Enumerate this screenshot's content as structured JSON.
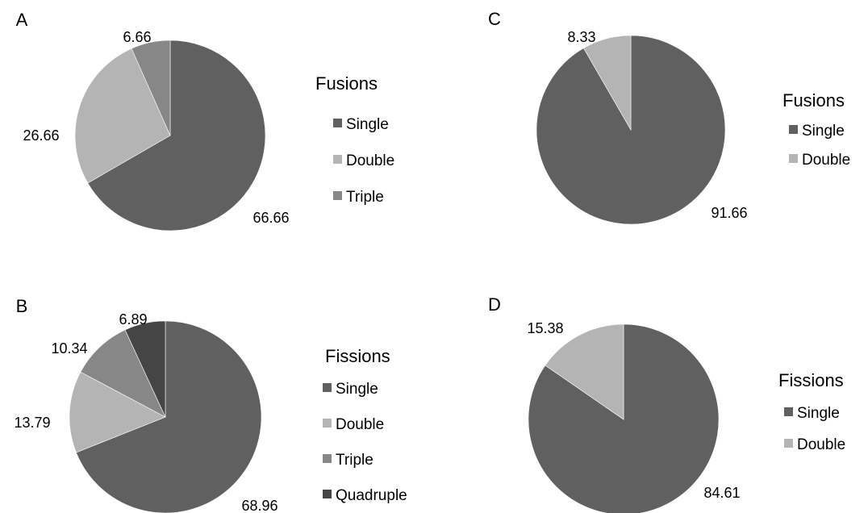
{
  "chart_data": [
    {
      "type": "pie",
      "panel": "A",
      "legend_title": "Fusions",
      "legend": [
        "Single",
        "Double",
        "Triple"
      ],
      "slices": [
        {
          "name": "Single",
          "value": 66.66,
          "label": "66.66",
          "color": "#606060"
        },
        {
          "name": "Double",
          "value": 26.66,
          "label": "26.66",
          "color": "#b4b4b4"
        },
        {
          "name": "Triple",
          "value": 6.66,
          "label": "6.66",
          "color": "#878787"
        }
      ],
      "legend_placement": "right"
    },
    {
      "type": "pie",
      "panel": "B",
      "legend_title": "Fissions",
      "legend": [
        "Single",
        "Double",
        "Triple",
        "Quadruple"
      ],
      "slices": [
        {
          "name": "Single",
          "value": 68.96,
          "label": "68.96",
          "color": "#606060"
        },
        {
          "name": "Double",
          "value": 13.79,
          "label": "13.79",
          "color": "#b4b4b4"
        },
        {
          "name": "Triple",
          "value": 10.34,
          "label": "10.34",
          "color": "#878787"
        },
        {
          "name": "Quadruple",
          "value": 6.89,
          "label": "6.89",
          "color": "#454545"
        }
      ],
      "legend_placement": "right"
    },
    {
      "type": "pie",
      "panel": "C",
      "legend_title": "Fusions",
      "legend": [
        "Single",
        "Double"
      ],
      "slices": [
        {
          "name": "Single",
          "value": 91.66,
          "label": "91.66",
          "color": "#606060"
        },
        {
          "name": "Double",
          "value": 8.33,
          "label": "8.33",
          "color": "#b4b4b4"
        }
      ],
      "legend_placement": "right"
    },
    {
      "type": "pie",
      "panel": "D",
      "legend_title": "Fissions",
      "legend": [
        "Single",
        "Double"
      ],
      "slices": [
        {
          "name": "Single",
          "value": 84.61,
          "label": "84.61",
          "color": "#606060"
        },
        {
          "name": "Double",
          "value": 15.38,
          "label": "15.38",
          "color": "#b4b4b4"
        }
      ],
      "legend_placement": "right"
    }
  ]
}
